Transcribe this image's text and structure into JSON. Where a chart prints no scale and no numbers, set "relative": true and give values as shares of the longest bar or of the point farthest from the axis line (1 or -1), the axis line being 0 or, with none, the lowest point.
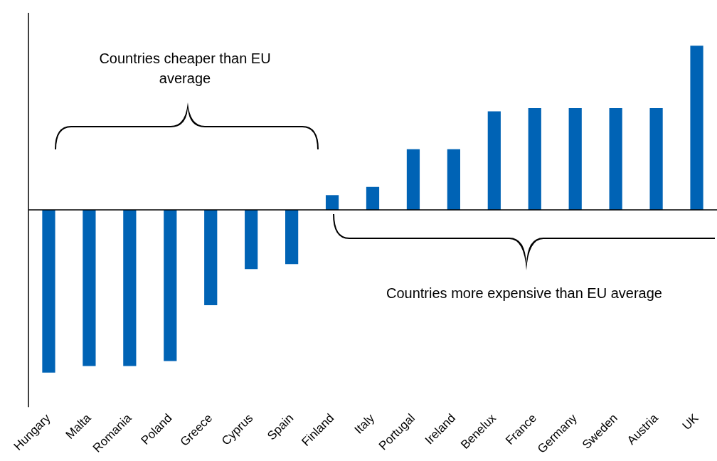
{
  "chart_data": {
    "type": "bar",
    "relative": true,
    "categories": [
      "Hungary",
      "Malta",
      "Romania",
      "Poland",
      "Greece",
      "Cyprus",
      "Spain",
      "Finland",
      "Italy",
      "Portugal",
      "Ireland",
      "Benelux",
      "France",
      "Germany",
      "Sweden",
      "Austria",
      "UK"
    ],
    "values": [
      -0.99,
      -0.95,
      -0.95,
      -0.92,
      -0.58,
      -0.36,
      -0.33,
      0.09,
      0.14,
      0.37,
      0.37,
      0.6,
      0.62,
      0.62,
      0.62,
      0.62,
      1
    ],
    "color": "#0063b5",
    "annotations": [
      "Countries cheaper than EU average",
      "Countries more expensive than EU average"
    ],
    "grid": false,
    "legend": false
  }
}
